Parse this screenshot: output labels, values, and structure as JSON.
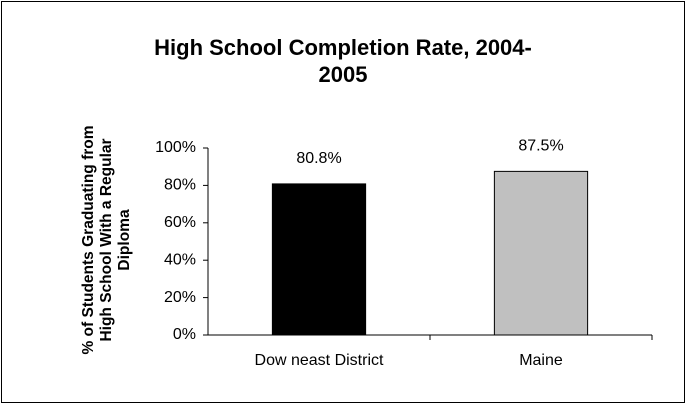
{
  "chart_data": {
    "type": "bar",
    "title": "High School Completion Rate,  2004-2005",
    "y_label": "% of Students Graduating from High School With a Regular Diploma",
    "categories": [
      "Dow neast District",
      "Maine"
    ],
    "values": [
      80.8,
      87.5
    ],
    "value_labels": [
      "80.8%",
      "87.5%"
    ],
    "colors": [
      "#000000",
      "#c0c0c0"
    ],
    "ylim": [
      0,
      100
    ],
    "yticks": [
      {
        "value": 0,
        "label": "0%"
      },
      {
        "value": 20,
        "label": "20%"
      },
      {
        "value": 40,
        "label": "40%"
      },
      {
        "value": 60,
        "label": "60%"
      },
      {
        "value": 80,
        "label": "80%"
      },
      {
        "value": 100,
        "label": "100%"
      }
    ],
    "grid": false
  }
}
